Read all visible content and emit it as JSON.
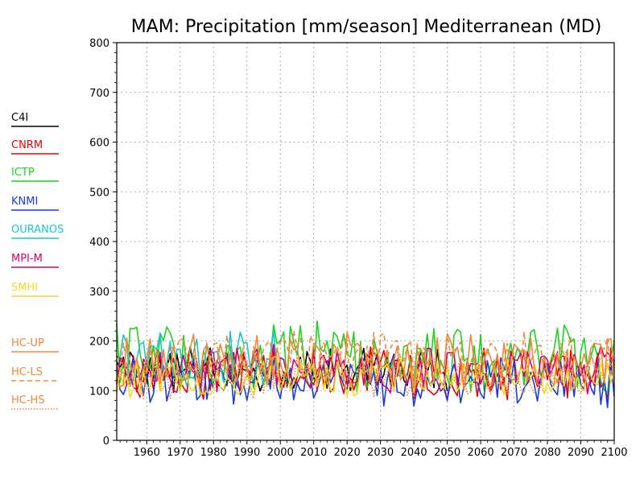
{
  "chart_data": {
    "type": "line",
    "title": "MAM: Precipitation [mm/season] Mediterranean (MD)",
    "xlabel": "",
    "ylabel": "",
    "xlim": [
      1951,
      2100
    ],
    "ylim": [
      0,
      800
    ],
    "x_ticks": [
      "1960",
      "1970",
      "1980",
      "1990",
      "2000",
      "2010",
      "2020",
      "2030",
      "2040",
      "2050",
      "2060",
      "2070",
      "2080",
      "2090",
      "2100"
    ],
    "y_ticks": [
      "0",
      "100",
      "200",
      "300",
      "400",
      "500",
      "600",
      "700",
      "800"
    ],
    "grid": true,
    "legend_position": "left",
    "series": [
      {
        "name": "C4I",
        "color": "#000000",
        "style": "solid",
        "x_range": [
          1951,
          2050
        ],
        "base": 140,
        "amp": 40
      },
      {
        "name": "CNRM",
        "color": "#e60000",
        "style": "solid",
        "x_range": [
          1951,
          2100
        ],
        "base": 135,
        "amp": 45
      },
      {
        "name": "ICTP",
        "color": "#1ed21e",
        "style": "solid",
        "x_range": [
          1951,
          2100
        ],
        "base": 170,
        "amp": 60
      },
      {
        "name": "KNMI",
        "color": "#1a3cd6",
        "style": "solid",
        "x_range": [
          1951,
          2100
        ],
        "base": 120,
        "amp": 45
      },
      {
        "name": "OURANOS",
        "color": "#18c8c8",
        "style": "solid",
        "x_range": [
          1951,
          2000
        ],
        "base": 165,
        "amp": 50
      },
      {
        "name": "MPI-M",
        "color": "#d4006e",
        "style": "solid",
        "x_range": [
          1951,
          2100
        ],
        "base": 140,
        "amp": 45
      },
      {
        "name": "SMHI",
        "color": "#f0dc23",
        "style": "solid",
        "x_range": [
          1951,
          2100
        ],
        "base": 125,
        "amp": 35
      },
      {
        "name": "HC-UP",
        "color": "#eb8a3a",
        "style": "solid",
        "x_range": [
          1951,
          2100
        ],
        "base": 160,
        "amp": 50
      },
      {
        "name": "HC-LS",
        "color": "#eb8a3a",
        "style": "dashed",
        "x_range": [
          1951,
          2100
        ],
        "base": 165,
        "amp": 50
      },
      {
        "name": "HC-HS",
        "color": "#eb8a3a",
        "style": "dotted",
        "x_range": [
          1951,
          2100
        ],
        "base": 130,
        "amp": 40
      }
    ]
  }
}
